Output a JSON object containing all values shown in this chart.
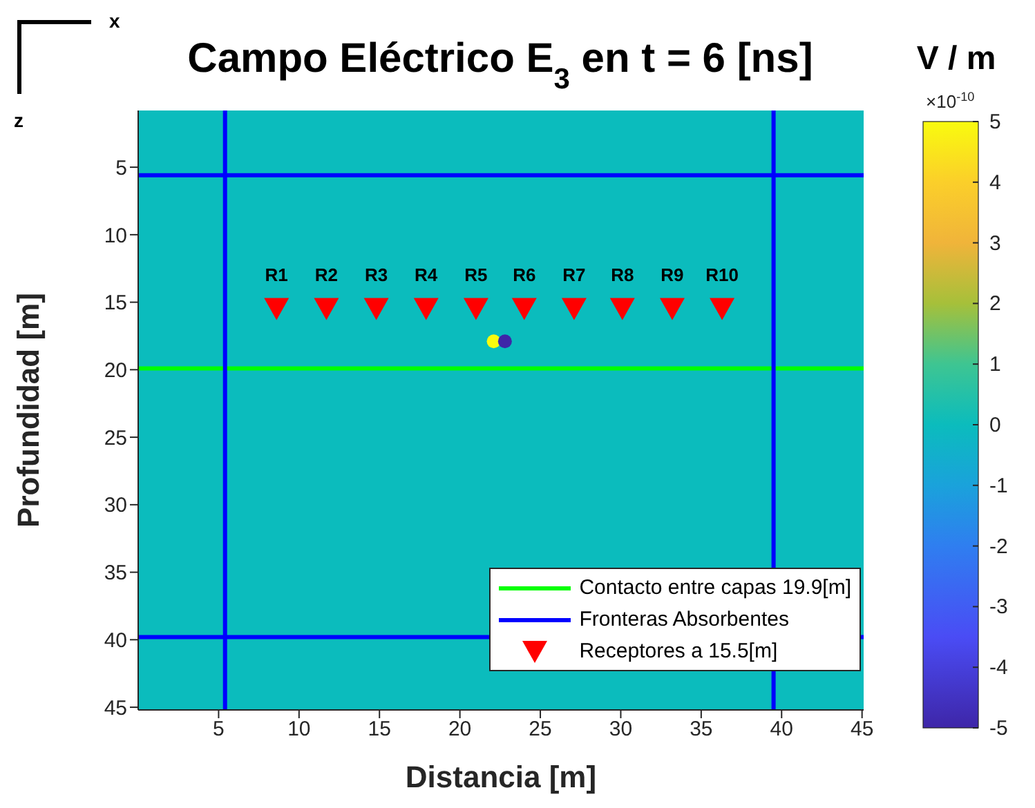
{
  "chart_data": {
    "type": "scatter",
    "title": "Campo Eléctrico E$_{3}$ en t = 6 [ns]",
    "xlabel": "Distancia [m]",
    "ylabel": "Profundidad [m]",
    "clabel": "V / m",
    "xlim": [
      0,
      45.1
    ],
    "ylim": [
      45.2,
      0.8
    ],
    "xticks": [
      5,
      10,
      15,
      20,
      25,
      30,
      35,
      40,
      45
    ],
    "yticks": [
      5,
      10,
      15,
      20,
      25,
      30,
      35,
      40,
      45
    ],
    "clim": [
      -5,
      5
    ],
    "cticks": [
      -5,
      -4,
      -3,
      -2,
      -1,
      0,
      1,
      2,
      3,
      4,
      5
    ],
    "series": [
      {
        "name": "Receptores a 15.5[m]",
        "marker": "triangle",
        "color": "#ff0000",
        "x": [
          8.6,
          11.7,
          14.8,
          17.9,
          21.0,
          24.0,
          27.1,
          30.1,
          33.2,
          36.3
        ],
        "values": [
          15.5,
          15.5,
          15.5,
          15.5,
          15.5,
          15.5,
          15.5,
          15.5,
          15.5,
          15.5
        ]
      },
      {
        "marker": "circle",
        "x": [
          22.1,
          22.8
        ],
        "values": [
          17.9,
          17.9
        ],
        "colors": [
          "#f9fb0e",
          "#3e26a8"
        ]
      }
    ],
    "ref_lines": [
      {
        "axis": "y",
        "value": 19.9,
        "label": "Contacto entre capas 19.9[m]",
        "color": "#00ff00"
      },
      {
        "axis": "y",
        "value": 39.8,
        "label": "Fronteras Absorbentes",
        "color": "#0000ff"
      },
      {
        "axis": "x",
        "value": 5.4,
        "color": "#0000ff"
      },
      {
        "axis": "x",
        "value": 39.5,
        "color": "#0000ff"
      },
      {
        "axis": "y",
        "value": 5.6,
        "color": "#0000ff"
      }
    ],
    "annotations": [
      "x",
      "z",
      "×10$^{-10}$",
      {
        "text": "R1",
        "x": 8.6,
        "y": 15.5
      },
      {
        "text": "R2",
        "x": 11.7,
        "y": 15.5
      },
      {
        "text": "R3",
        "x": 14.8,
        "y": 15.5
      },
      {
        "text": "R4",
        "x": 17.9,
        "y": 15.5
      },
      {
        "text": "R5",
        "x": 21.0,
        "y": 15.5
      },
      {
        "text": "R6",
        "x": 24.0,
        "y": 15.5
      },
      {
        "text": "R7",
        "x": 27.1,
        "y": 15.5
      },
      {
        "text": "R8",
        "x": 30.1,
        "y": 15.5
      },
      {
        "text": "R9",
        "x": 33.2,
        "y": 15.5
      },
      {
        "text": "R10",
        "x": 36.3,
        "y": 15.5
      }
    ],
    "legend": "bottom right",
    "grid": false
  }
}
